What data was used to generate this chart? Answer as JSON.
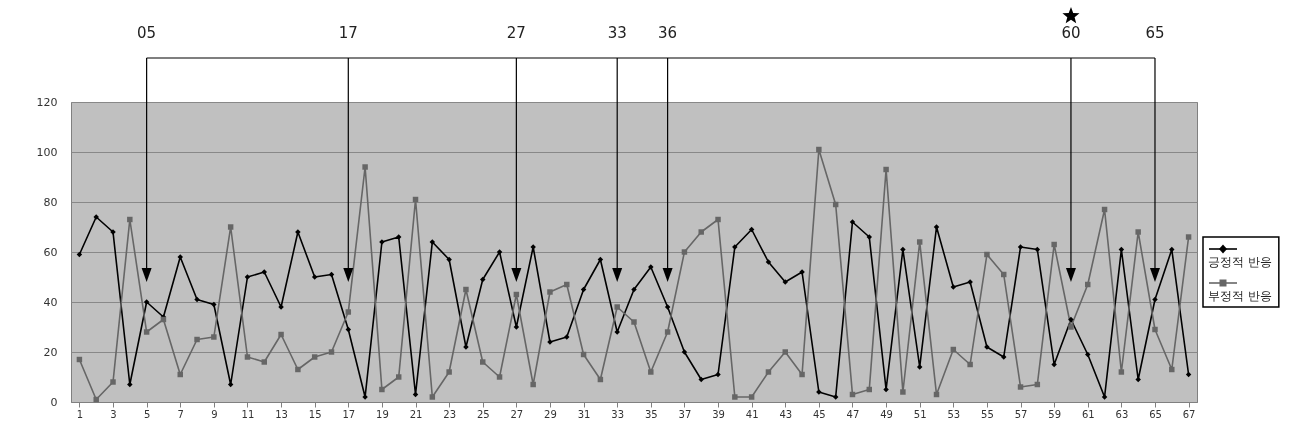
{
  "chart_data": {
    "type": "line",
    "x": [
      1,
      2,
      3,
      4,
      5,
      6,
      7,
      8,
      9,
      10,
      11,
      12,
      13,
      14,
      15,
      16,
      17,
      18,
      19,
      20,
      21,
      22,
      23,
      24,
      25,
      26,
      27,
      28,
      29,
      30,
      31,
      32,
      33,
      34,
      35,
      36,
      37,
      38,
      39,
      40,
      41,
      42,
      43,
      44,
      45,
      46,
      47,
      48,
      49,
      50,
      51,
      52,
      53,
      54,
      55,
      56,
      57,
      58,
      59,
      60,
      61,
      62,
      63,
      64,
      65,
      66,
      67
    ],
    "series": [
      {
        "name": "긍정적 반응",
        "color": "#000000",
        "marker": "diamond",
        "values": [
          59,
          74,
          68,
          7,
          40,
          34,
          58,
          41,
          39,
          7,
          50,
          52,
          38,
          68,
          50,
          51,
          29,
          2,
          64,
          66,
          3,
          64,
          57,
          22,
          49,
          60,
          30,
          62,
          24,
          26,
          45,
          57,
          28,
          45,
          54,
          38,
          20,
          9,
          11,
          62,
          69,
          56,
          48,
          52,
          4,
          2,
          72,
          66,
          5,
          61,
          14,
          70,
          46,
          48,
          22,
          18,
          62,
          61,
          15,
          33,
          19,
          2,
          61,
          9,
          41,
          61,
          11
        ]
      },
      {
        "name": "부정적 반응",
        "color": "#666666",
        "marker": "square",
        "values": [
          17,
          1,
          8,
          73,
          28,
          33,
          11,
          25,
          26,
          70,
          18,
          16,
          27,
          13,
          18,
          20,
          36,
          94,
          5,
          10,
          81,
          2,
          12,
          45,
          16,
          10,
          43,
          7,
          44,
          47,
          19,
          9,
          38,
          32,
          12,
          28,
          60,
          68,
          73,
          2,
          2,
          12,
          20,
          11,
          101,
          79,
          3,
          5,
          93,
          4,
          64,
          3,
          21,
          15,
          59,
          51,
          6,
          7,
          63,
          30,
          47,
          77,
          12,
          68,
          29,
          13,
          66
        ]
      }
    ],
    "xlim": [
      0.5,
      67.5
    ],
    "xticks": [
      1,
      3,
      5,
      7,
      9,
      11,
      13,
      15,
      17,
      19,
      21,
      23,
      25,
      27,
      29,
      31,
      33,
      35,
      37,
      39,
      41,
      43,
      45,
      47,
      49,
      51,
      53,
      55,
      57,
      59,
      61,
      63,
      65,
      67
    ],
    "ylim": [
      0,
      120
    ],
    "yticks": [
      0,
      20,
      40,
      60,
      80,
      100,
      120
    ],
    "grid": "y",
    "legend": "right",
    "ref_lines": [
      {
        "axis": "x",
        "value": 5,
        "label": "05"
      },
      {
        "axis": "x",
        "value": 17,
        "label": "17"
      },
      {
        "axis": "x",
        "value": 27,
        "label": "27"
      },
      {
        "axis": "x",
        "value": 33,
        "label": "33"
      },
      {
        "axis": "x",
        "value": 36,
        "label": "36"
      },
      {
        "axis": "x",
        "value": 60,
        "label": "60"
      },
      {
        "axis": "x",
        "value": 65,
        "label": "65"
      }
    ]
  }
}
